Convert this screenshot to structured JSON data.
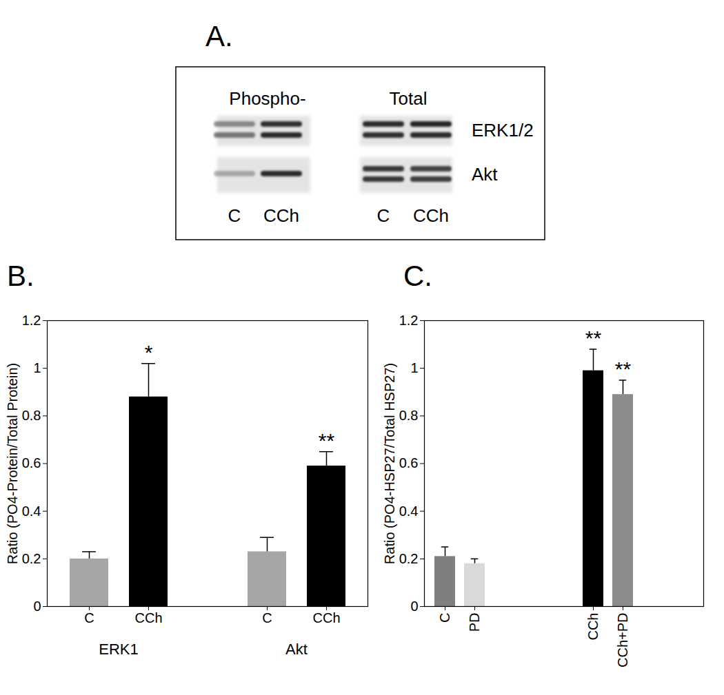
{
  "blot": {
    "title": "A.",
    "column_groups": [
      "Phospho-",
      "Total"
    ],
    "lanes": [
      "C",
      "CCh"
    ],
    "rows": [
      "ERK1/2",
      "Akt"
    ]
  },
  "chart_data": [
    {
      "type": "bar",
      "title": "B.",
      "y_label": "Ratio (PO4-Protein/Total Protein)",
      "ylim": [
        0,
        1.2
      ],
      "yticks": [
        0,
        0.2,
        0.4,
        0.6,
        0.8,
        1,
        1.2
      ],
      "groups": [
        {
          "name": "ERK1",
          "categories": [
            "C",
            "CCh"
          ],
          "values": [
            0.2,
            0.88
          ],
          "errors": [
            0.03,
            0.14
          ],
          "colors": [
            "#a6a6a6",
            "#000000"
          ],
          "annotations": [
            null,
            "*"
          ]
        },
        {
          "name": "Akt",
          "categories": [
            "C",
            "CCh"
          ],
          "values": [
            0.23,
            0.59
          ],
          "errors": [
            0.06,
            0.06
          ],
          "colors": [
            "#a6a6a6",
            "#000000"
          ],
          "annotations": [
            null,
            "**"
          ]
        }
      ]
    },
    {
      "type": "bar",
      "title": "C.",
      "y_label": "Ratio (PO4-HSP27/Total HSP27)",
      "ylim": [
        0,
        1.2
      ],
      "yticks": [
        0,
        0.2,
        0.4,
        0.6,
        0.8,
        1,
        1.2
      ],
      "groups": [
        {
          "categories": [
            "C",
            "PD"
          ],
          "values": [
            0.21,
            0.18
          ],
          "errors": [
            0.04,
            0.02
          ],
          "colors": [
            "#7f7f7f",
            "#d9d9d9"
          ],
          "annotations": [
            null,
            null
          ]
        },
        {
          "categories": [
            "CCh",
            "CCh+PD"
          ],
          "values": [
            0.99,
            0.89
          ],
          "errors": [
            0.09,
            0.06
          ],
          "colors": [
            "#000000",
            "#8c8c8c"
          ],
          "annotations": [
            "**",
            "**"
          ]
        }
      ]
    }
  ]
}
